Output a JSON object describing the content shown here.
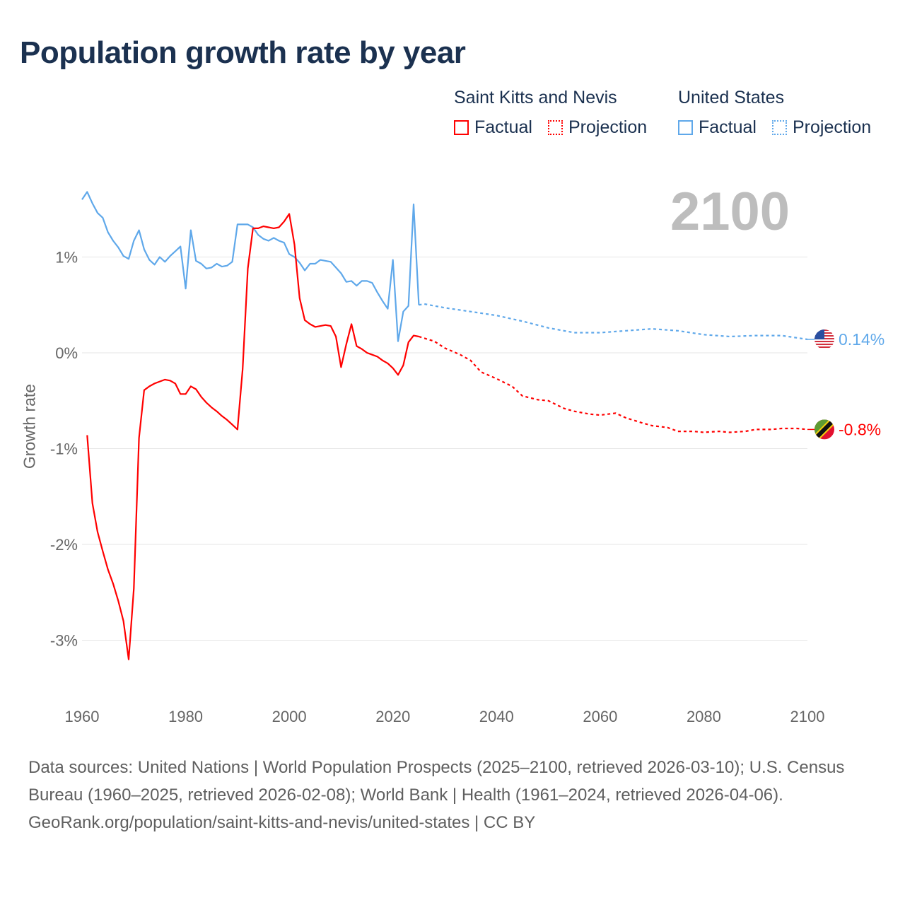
{
  "title": "Population growth rate by year",
  "legend": {
    "groups": [
      {
        "name": "Saint Kitts and Nevis",
        "color": "#ff0000",
        "factual": "Factual",
        "projection": "Projection"
      },
      {
        "name": "United States",
        "color": "#5fa8ea",
        "factual": "Factual",
        "projection": "Projection"
      }
    ]
  },
  "current_year": "2100",
  "footer": {
    "sources": "Data sources: United Nations | World Population Prospects (2025–2100, retrieved 2026-03-10); U.S. Census Bureau (1960–2025, retrieved 2026-02-08); World Bank | Health (1961–2024, retrieved 2026-04-06).",
    "credit": "GeoRank.org/population/saint-kitts-and-nevis/united-states | CC BY"
  },
  "chart_data": {
    "type": "line",
    "title": "Population growth rate by year",
    "xlabel": "",
    "ylabel": "Growth rate",
    "xlim": [
      1960,
      2100
    ],
    "ylim": [
      -3.5,
      1.9
    ],
    "grid": true,
    "x_ticks": [
      1960,
      1980,
      2000,
      2020,
      2040,
      2060,
      2080,
      2100
    ],
    "x_tick_labels": [
      "1960",
      "1980",
      "2000",
      "2020",
      "2040",
      "2060",
      "2080",
      "2100"
    ],
    "y_ticks": [
      1,
      0,
      -1,
      -2,
      -3
    ],
    "y_tick_labels": [
      "1%",
      "0%",
      "-1%",
      "-2%",
      "-3%"
    ],
    "series": [
      {
        "name": "United States",
        "color": "#5fa8ea",
        "end_label": "0.14%",
        "factual": {
          "x": [
            1960,
            1961,
            1962,
            1963,
            1964,
            1965,
            1966,
            1967,
            1968,
            1969,
            1970,
            1971,
            1972,
            1973,
            1974,
            1975,
            1976,
            1977,
            1978,
            1979,
            1980,
            1981,
            1982,
            1983,
            1984,
            1985,
            1986,
            1987,
            1988,
            1989,
            1990,
            1991,
            1992,
            1993,
            1994,
            1995,
            1996,
            1997,
            1998,
            1999,
            2000,
            2001,
            2002,
            2003,
            2004,
            2005,
            2006,
            2007,
            2008,
            2009,
            2010,
            2011,
            2012,
            2013,
            2014,
            2015,
            2016,
            2017,
            2018,
            2019,
            2020,
            2021,
            2022,
            2023,
            2024,
            2025
          ],
          "y": [
            1.6,
            1.68,
            1.56,
            1.46,
            1.41,
            1.26,
            1.17,
            1.1,
            1.01,
            0.98,
            1.17,
            1.28,
            1.08,
            0.97,
            0.92,
            1.0,
            0.95,
            1.01,
            1.06,
            1.11,
            0.67,
            1.28,
            0.96,
            0.93,
            0.88,
            0.89,
            0.93,
            0.9,
            0.91,
            0.95,
            1.34,
            1.34,
            1.34,
            1.31,
            1.23,
            1.19,
            1.17,
            1.2,
            1.17,
            1.15,
            1.03,
            1.0,
            0.94,
            0.86,
            0.93,
            0.93,
            0.97,
            0.96,
            0.95,
            0.89,
            0.83,
            0.74,
            0.75,
            0.7,
            0.75,
            0.75,
            0.73,
            0.63,
            0.54,
            0.46,
            0.97,
            0.12,
            0.43,
            0.49,
            1.55,
            0.5
          ]
        },
        "projection": {
          "x": [
            2025,
            2026,
            2030,
            2035,
            2040,
            2045,
            2050,
            2055,
            2060,
            2065,
            2070,
            2075,
            2080,
            2085,
            2090,
            2095,
            2100
          ],
          "y": [
            0.5,
            0.51,
            0.47,
            0.43,
            0.39,
            0.33,
            0.26,
            0.21,
            0.21,
            0.23,
            0.25,
            0.23,
            0.19,
            0.17,
            0.18,
            0.18,
            0.14
          ]
        }
      },
      {
        "name": "Saint Kitts and Nevis",
        "color": "#ff0000",
        "end_label": "-0.8%",
        "factual": {
          "x": [
            1961,
            1962,
            1963,
            1964,
            1965,
            1966,
            1967,
            1968,
            1969,
            1970,
            1971,
            1972,
            1973,
            1974,
            1975,
            1976,
            1977,
            1978,
            1979,
            1980,
            1981,
            1982,
            1983,
            1984,
            1985,
            1986,
            1987,
            1988,
            1989,
            1990,
            1991,
            1992,
            1993,
            1994,
            1995,
            1996,
            1997,
            1998,
            1999,
            2000,
            2001,
            2002,
            2003,
            2004,
            2005,
            2006,
            2007,
            2008,
            2009,
            2010,
            2011,
            2012,
            2013,
            2014,
            2015,
            2016,
            2017,
            2018,
            2019,
            2020,
            2021,
            2022,
            2023,
            2024,
            2025
          ],
          "y": [
            -0.86,
            -1.57,
            -1.87,
            -2.07,
            -2.26,
            -2.41,
            -2.59,
            -2.8,
            -3.2,
            -2.46,
            -0.89,
            -0.39,
            -0.35,
            -0.32,
            -0.3,
            -0.28,
            -0.29,
            -0.32,
            -0.43,
            -0.43,
            -0.35,
            -0.38,
            -0.46,
            -0.52,
            -0.57,
            -0.61,
            -0.66,
            -0.7,
            -0.75,
            -0.8,
            -0.17,
            0.88,
            1.3,
            1.3,
            1.32,
            1.31,
            1.3,
            1.31,
            1.37,
            1.45,
            1.13,
            0.57,
            0.34,
            0.3,
            0.27,
            0.28,
            0.29,
            0.28,
            0.17,
            -0.15,
            0.09,
            0.3,
            0.07,
            0.04,
            0.0,
            -0.02,
            -0.04,
            -0.08,
            -0.11,
            -0.16,
            -0.23,
            -0.13,
            0.11,
            0.18,
            0.17
          ]
        },
        "projection": {
          "x": [
            2025,
            2028,
            2030,
            2033,
            2035,
            2037,
            2040,
            2043,
            2045,
            2048,
            2050,
            2053,
            2055,
            2058,
            2060,
            2063,
            2065,
            2068,
            2070,
            2073,
            2075,
            2078,
            2080,
            2083,
            2085,
            2088,
            2090,
            2093,
            2095,
            2098,
            2100
          ],
          "y": [
            0.17,
            0.12,
            0.05,
            -0.02,
            -0.08,
            -0.2,
            -0.27,
            -0.35,
            -0.45,
            -0.49,
            -0.5,
            -0.58,
            -0.61,
            -0.64,
            -0.65,
            -0.63,
            -0.68,
            -0.73,
            -0.76,
            -0.78,
            -0.82,
            -0.82,
            -0.83,
            -0.82,
            -0.83,
            -0.82,
            -0.8,
            -0.8,
            -0.79,
            -0.79,
            -0.8
          ]
        }
      }
    ]
  }
}
